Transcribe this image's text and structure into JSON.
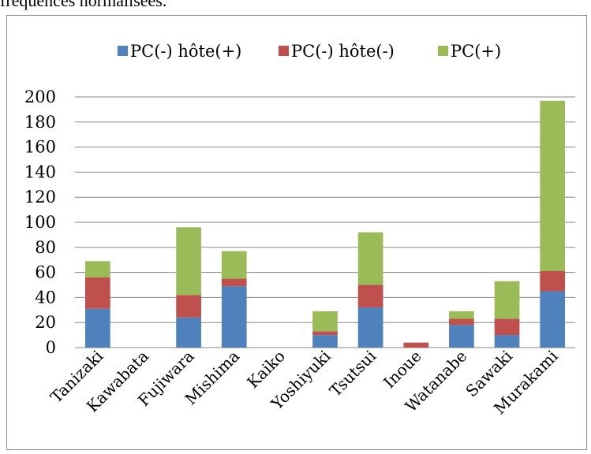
{
  "caption": "fréquences normalisées.",
  "chart_data": {
    "type": "bar",
    "stacked": true,
    "categories": [
      "Tanizaki",
      "Kawabata",
      "Fujiwara",
      "Mishima",
      "Kaiko",
      "Yoshiyuki",
      "Tsutsui",
      "Inoue",
      "Watanabe",
      "Sawaki",
      "Murakami"
    ],
    "series": [
      {
        "name": "PC(-) hôte(+)",
        "color": "#4f81bd",
        "values": [
          31,
          0,
          24,
          49,
          0,
          10,
          32,
          0,
          18,
          10,
          45
        ]
      },
      {
        "name": "PC(-) hôte(-)",
        "color": "#c0504d",
        "values": [
          25,
          0,
          18,
          6,
          0,
          3,
          18,
          4,
          5,
          13,
          16
        ]
      },
      {
        "name": "PC(+)",
        "color": "#9bbb59",
        "values": [
          13,
          0,
          54,
          22,
          0,
          16,
          42,
          0,
          6,
          30,
          136
        ]
      }
    ],
    "ylim": [
      0,
      200
    ],
    "yticks": [
      0,
      20,
      40,
      60,
      80,
      100,
      120,
      140,
      160,
      180,
      200
    ],
    "grid": true,
    "legend": "top"
  }
}
